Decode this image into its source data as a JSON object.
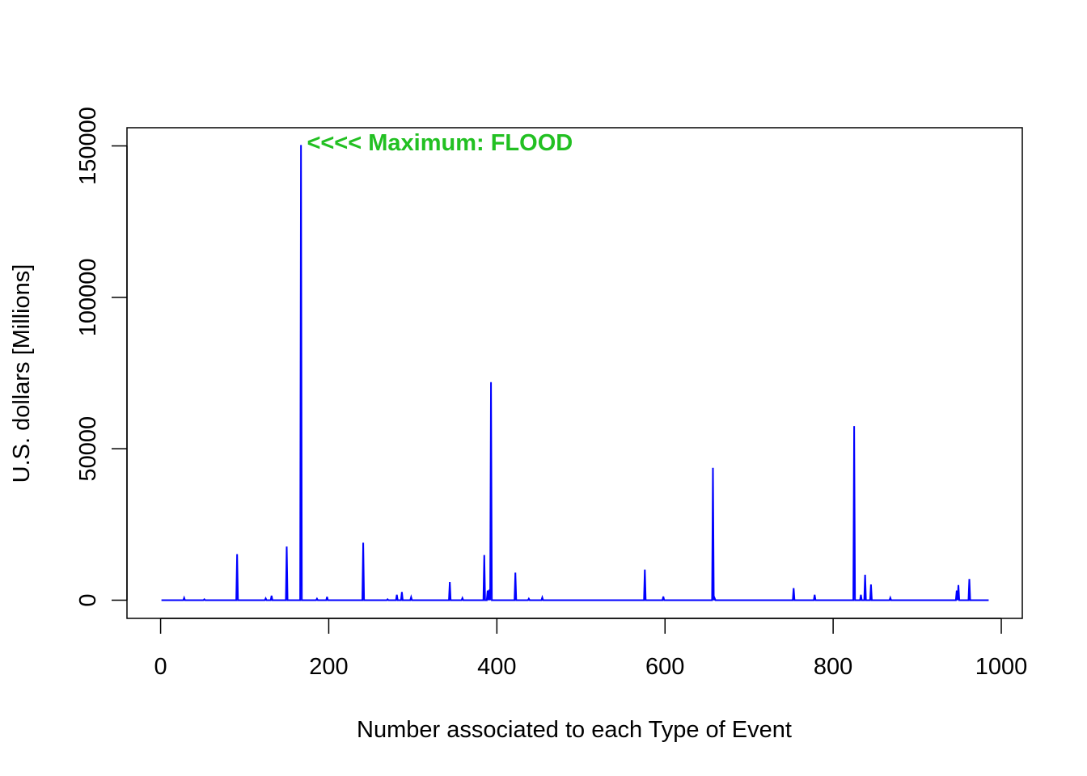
{
  "chart_data": {
    "type": "line",
    "title": "",
    "xlabel": "Number associated to each Type of Event",
    "ylabel": "U.S. dollars [Millions]",
    "xlim": [
      -40,
      1025
    ],
    "ylim": [
      -6000,
      156000
    ],
    "x_ticks": [
      0,
      200,
      400,
      600,
      800,
      1000
    ],
    "y_ticks": [
      0,
      50000,
      100000,
      150000
    ],
    "x_tick_labels": [
      "0",
      "200",
      "400",
      "600",
      "800",
      "1000"
    ],
    "y_tick_labels": [
      "0",
      "50000",
      "100000",
      "150000"
    ],
    "grid": false,
    "line_color": "#0000ff",
    "annotation": {
      "text": "<<<< Maximum: FLOOD",
      "color": "#22c022",
      "x": 174,
      "y": 148500
    },
    "n_points": 985,
    "spikes": [
      [
        28,
        800
      ],
      [
        52,
        300
      ],
      [
        91,
        15200
      ],
      [
        125,
        600
      ],
      [
        132,
        1500
      ],
      [
        150,
        17700
      ],
      [
        167,
        150300
      ],
      [
        186,
        500
      ],
      [
        198,
        1100
      ],
      [
        241,
        19000
      ],
      [
        270,
        300
      ],
      [
        281,
        1800
      ],
      [
        287,
        2700
      ],
      [
        298,
        1000
      ],
      [
        344,
        6000
      ],
      [
        359,
        700
      ],
      [
        385,
        14900
      ],
      [
        389,
        3200
      ],
      [
        391,
        3500
      ],
      [
        393,
        72000
      ],
      [
        422,
        9100
      ],
      [
        438,
        500
      ],
      [
        454,
        900
      ],
      [
        576,
        10100
      ],
      [
        598,
        1200
      ],
      [
        657,
        43700
      ],
      [
        659,
        700
      ],
      [
        753,
        4000
      ],
      [
        778,
        1800
      ],
      [
        825,
        57500
      ],
      [
        833,
        1800
      ],
      [
        838,
        8400
      ],
      [
        845,
        5200
      ],
      [
        868,
        800
      ],
      [
        947,
        3200
      ],
      [
        949,
        5000
      ],
      [
        962,
        7000
      ]
    ]
  }
}
